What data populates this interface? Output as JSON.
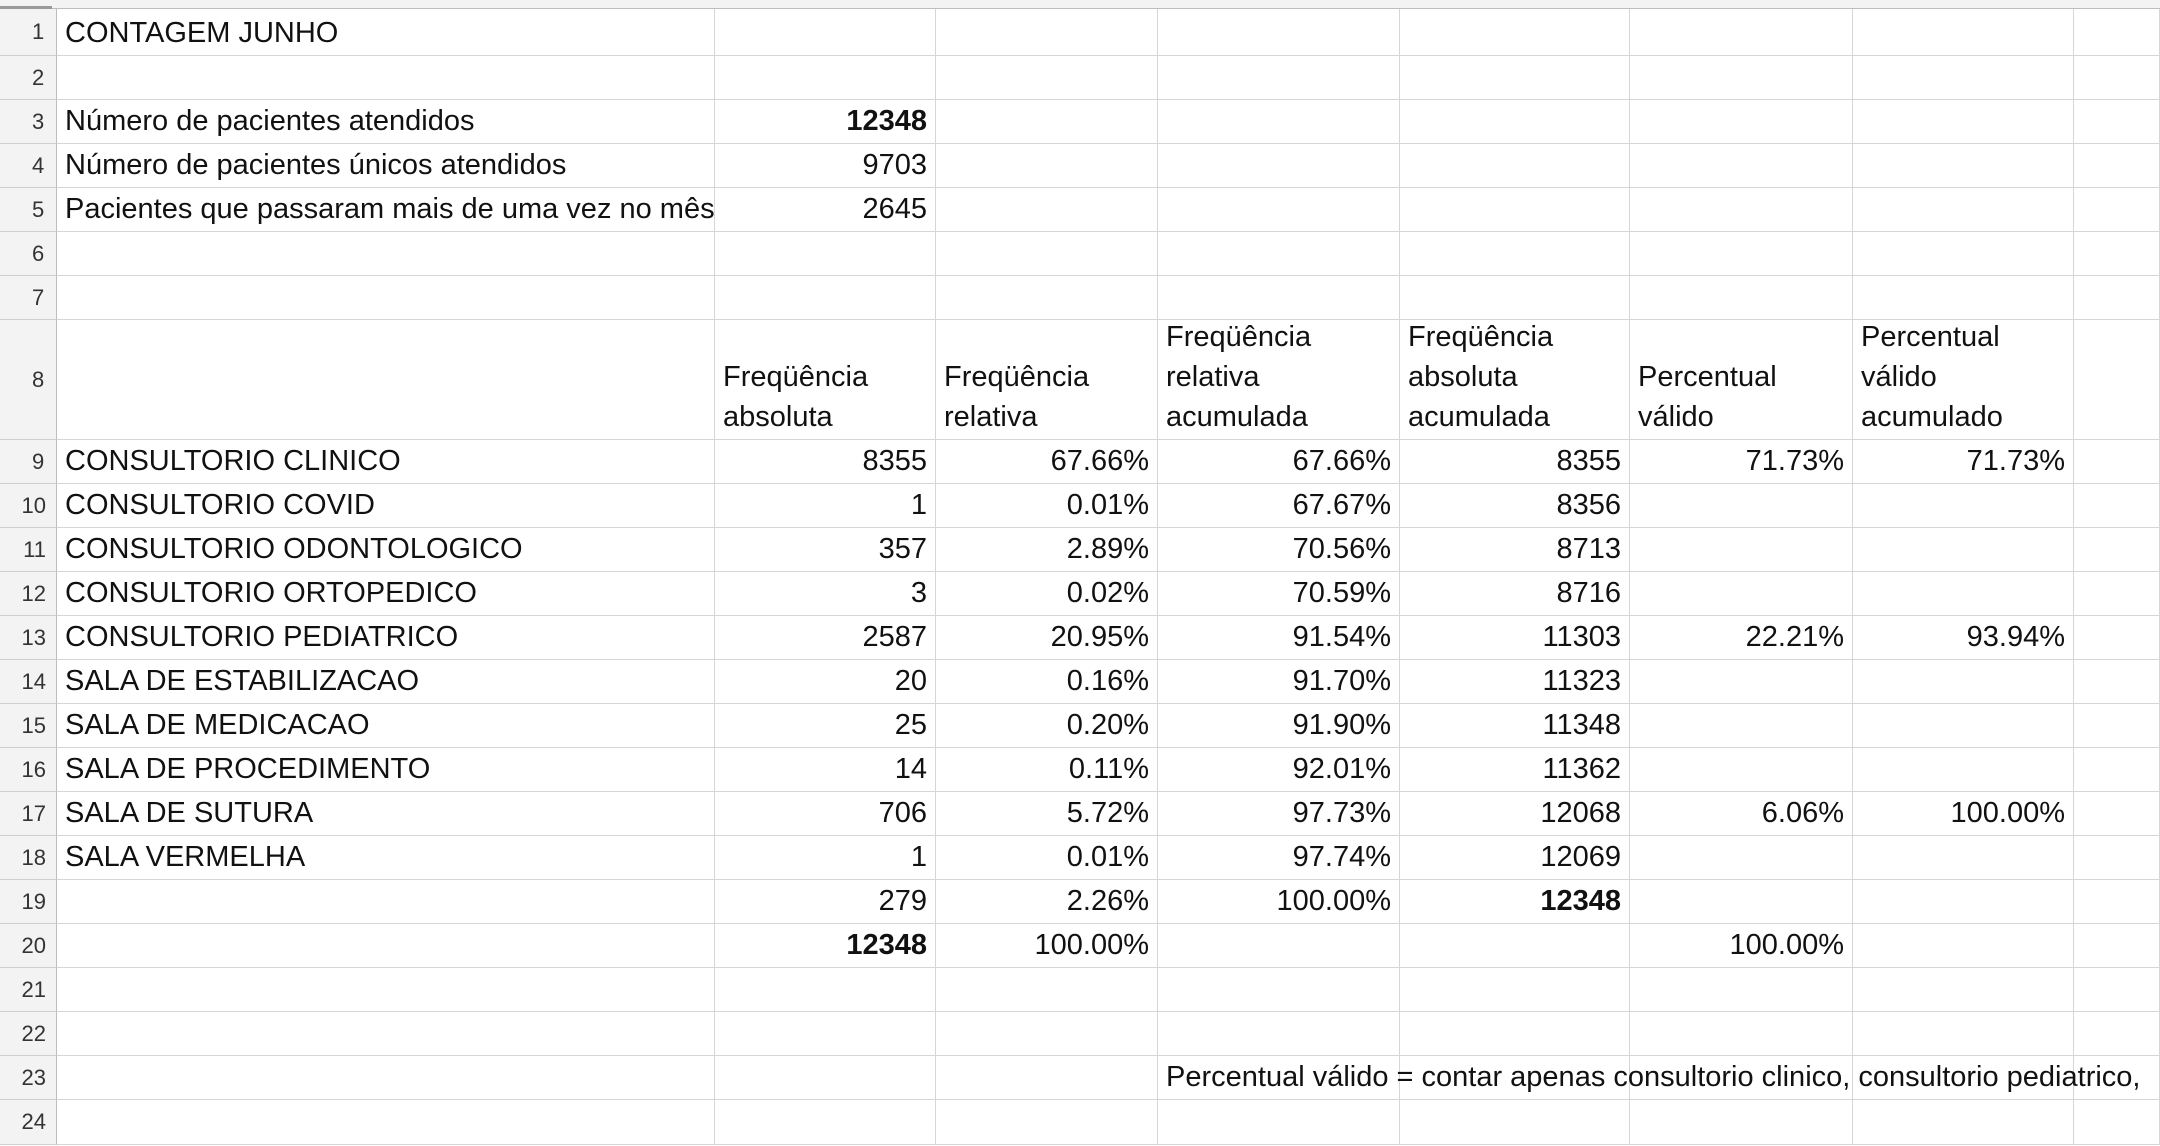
{
  "sheet": {
    "rows": [
      {
        "n": "1",
        "cells": {
          "A": {
            "v": "CONTAGEM JUNHO"
          }
        }
      },
      {
        "n": "2",
        "cells": {}
      },
      {
        "n": "3",
        "cells": {
          "A": {
            "v": "Número de pacientes atendidos"
          },
          "B": {
            "v": "12348",
            "bold": true
          }
        }
      },
      {
        "n": "4",
        "cells": {
          "A": {
            "v": "Número de pacientes únicos atendidos"
          },
          "B": {
            "v": "9703"
          }
        }
      },
      {
        "n": "5",
        "cells": {
          "A": {
            "v": "Pacientes que passaram mais de uma vez no mês"
          },
          "B": {
            "v": "2645"
          }
        }
      },
      {
        "n": "6",
        "cells": {}
      },
      {
        "n": "7",
        "cells": {}
      },
      {
        "n": "8",
        "cells": {
          "B": {
            "v": "Freqüência absoluta",
            "wrap": true
          },
          "C": {
            "v": "Freqüência relativa",
            "wrap": true
          },
          "D": {
            "v": "Freqüência relativa acumulada",
            "wrap": true
          },
          "E": {
            "v": "Freqüência absoluta acumulada",
            "wrap": true
          },
          "F": {
            "v": "Percentual válido",
            "wrap": true
          },
          "G": {
            "v": "Percentual válido acumulado",
            "wrap": true
          }
        }
      },
      {
        "n": "9",
        "cells": {
          "A": {
            "v": "CONSULTORIO CLINICO"
          },
          "B": {
            "v": "8355"
          },
          "C": {
            "v": "67.66%"
          },
          "D": {
            "v": "67.66%"
          },
          "E": {
            "v": "8355"
          },
          "F": {
            "v": "71.73%"
          },
          "G": {
            "v": "71.73%"
          }
        }
      },
      {
        "n": "10",
        "cells": {
          "A": {
            "v": "CONSULTORIO COVID"
          },
          "B": {
            "v": "1"
          },
          "C": {
            "v": "0.01%"
          },
          "D": {
            "v": "67.67%"
          },
          "E": {
            "v": "8356"
          }
        }
      },
      {
        "n": "11",
        "cells": {
          "A": {
            "v": "CONSULTORIO ODONTOLOGICO"
          },
          "B": {
            "v": "357"
          },
          "C": {
            "v": "2.89%"
          },
          "D": {
            "v": "70.56%"
          },
          "E": {
            "v": "8713"
          }
        }
      },
      {
        "n": "12",
        "cells": {
          "A": {
            "v": "CONSULTORIO ORTOPEDICO"
          },
          "B": {
            "v": "3"
          },
          "C": {
            "v": "0.02%"
          },
          "D": {
            "v": "70.59%"
          },
          "E": {
            "v": "8716"
          }
        }
      },
      {
        "n": "13",
        "cells": {
          "A": {
            "v": "CONSULTORIO PEDIATRICO"
          },
          "B": {
            "v": "2587"
          },
          "C": {
            "v": "20.95%"
          },
          "D": {
            "v": "91.54%"
          },
          "E": {
            "v": "11303"
          },
          "F": {
            "v": "22.21%"
          },
          "G": {
            "v": "93.94%"
          }
        }
      },
      {
        "n": "14",
        "cells": {
          "A": {
            "v": "SALA DE ESTABILIZACAO"
          },
          "B": {
            "v": "20"
          },
          "C": {
            "v": "0.16%"
          },
          "D": {
            "v": "91.70%"
          },
          "E": {
            "v": "11323"
          }
        }
      },
      {
        "n": "15",
        "cells": {
          "A": {
            "v": "SALA DE MEDICACAO"
          },
          "B": {
            "v": "25"
          },
          "C": {
            "v": "0.20%"
          },
          "D": {
            "v": "91.90%"
          },
          "E": {
            "v": "11348"
          }
        }
      },
      {
        "n": "16",
        "cells": {
          "A": {
            "v": "SALA DE PROCEDIMENTO"
          },
          "B": {
            "v": "14"
          },
          "C": {
            "v": "0.11%"
          },
          "D": {
            "v": "92.01%"
          },
          "E": {
            "v": "11362"
          }
        }
      },
      {
        "n": "17",
        "cells": {
          "A": {
            "v": "SALA DE SUTURA"
          },
          "B": {
            "v": "706"
          },
          "C": {
            "v": "5.72%"
          },
          "D": {
            "v": "97.73%"
          },
          "E": {
            "v": "12068"
          },
          "F": {
            "v": "6.06%"
          },
          "G": {
            "v": "100.00%"
          }
        }
      },
      {
        "n": "18",
        "cells": {
          "A": {
            "v": "SALA VERMELHA"
          },
          "B": {
            "v": "1"
          },
          "C": {
            "v": "0.01%"
          },
          "D": {
            "v": "97.74%"
          },
          "E": {
            "v": "12069"
          }
        }
      },
      {
        "n": "19",
        "cells": {
          "B": {
            "v": "279"
          },
          "C": {
            "v": "2.26%"
          },
          "D": {
            "v": "100.00%"
          },
          "E": {
            "v": "12348",
            "bold": true
          }
        }
      },
      {
        "n": "20",
        "cells": {
          "B": {
            "v": "12348",
            "bold": true
          },
          "C": {
            "v": "100.00%"
          },
          "F": {
            "v": "100.00%"
          }
        }
      },
      {
        "n": "21",
        "cells": {}
      },
      {
        "n": "22",
        "cells": {}
      },
      {
        "n": "23",
        "cells": {
          "D": {
            "v": "Percentual válido = contar apenas consultorio clinico, consultorio pediatrico,",
            "spill": true
          }
        }
      },
      {
        "n": "24",
        "cells": {}
      }
    ]
  }
}
